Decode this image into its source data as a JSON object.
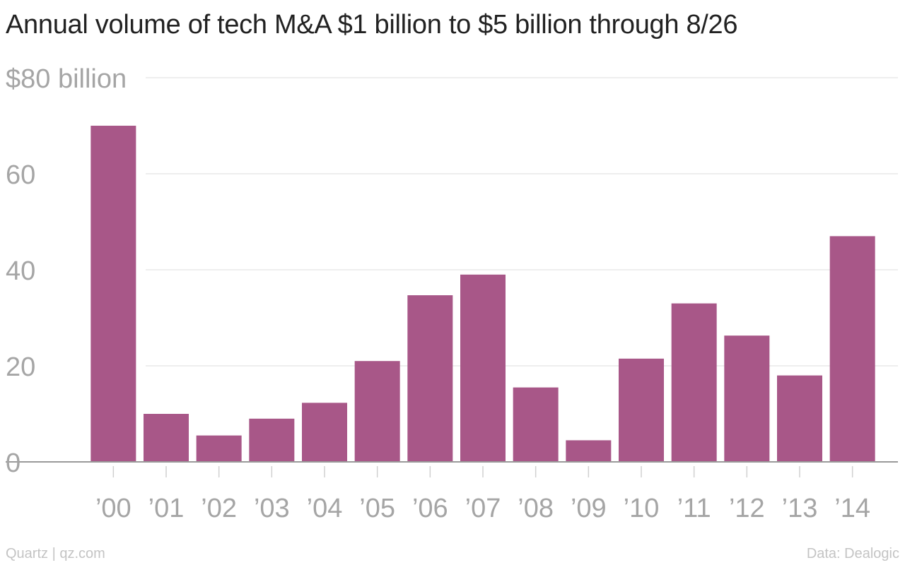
{
  "title": "Annual volume of tech M&A $1 billion to $5 billion through 8/26",
  "source_left": "Quartz | qz.com",
  "source_right": "Data: Dealogic",
  "colors": {
    "bar": "#a85788",
    "grid": "#e9e9e9",
    "tick": "#a5a5a5",
    "axis": "#9a9a9a"
  },
  "chart_data": {
    "type": "bar",
    "title": "Annual volume of tech M&A $1 billion to $5 billion through 8/26",
    "xlabel": "",
    "ylabel": "",
    "categories": [
      "’00",
      "’01",
      "’02",
      "’03",
      "’04",
      "’05",
      "’06",
      "’07",
      "’08",
      "’09",
      "’10",
      "’11",
      "’12",
      "’13",
      "’14"
    ],
    "values": [
      70,
      10,
      5.5,
      9,
      12.3,
      21,
      34.7,
      39,
      15.5,
      4.5,
      21.5,
      33,
      26.3,
      18,
      47
    ],
    "ylim": [
      0,
      80
    ],
    "yticks": [
      0,
      20,
      40,
      60,
      80
    ],
    "ytick_labels": [
      "0",
      "20",
      "40",
      "60",
      "$80 billion"
    ],
    "grid": true,
    "legend": "none"
  }
}
